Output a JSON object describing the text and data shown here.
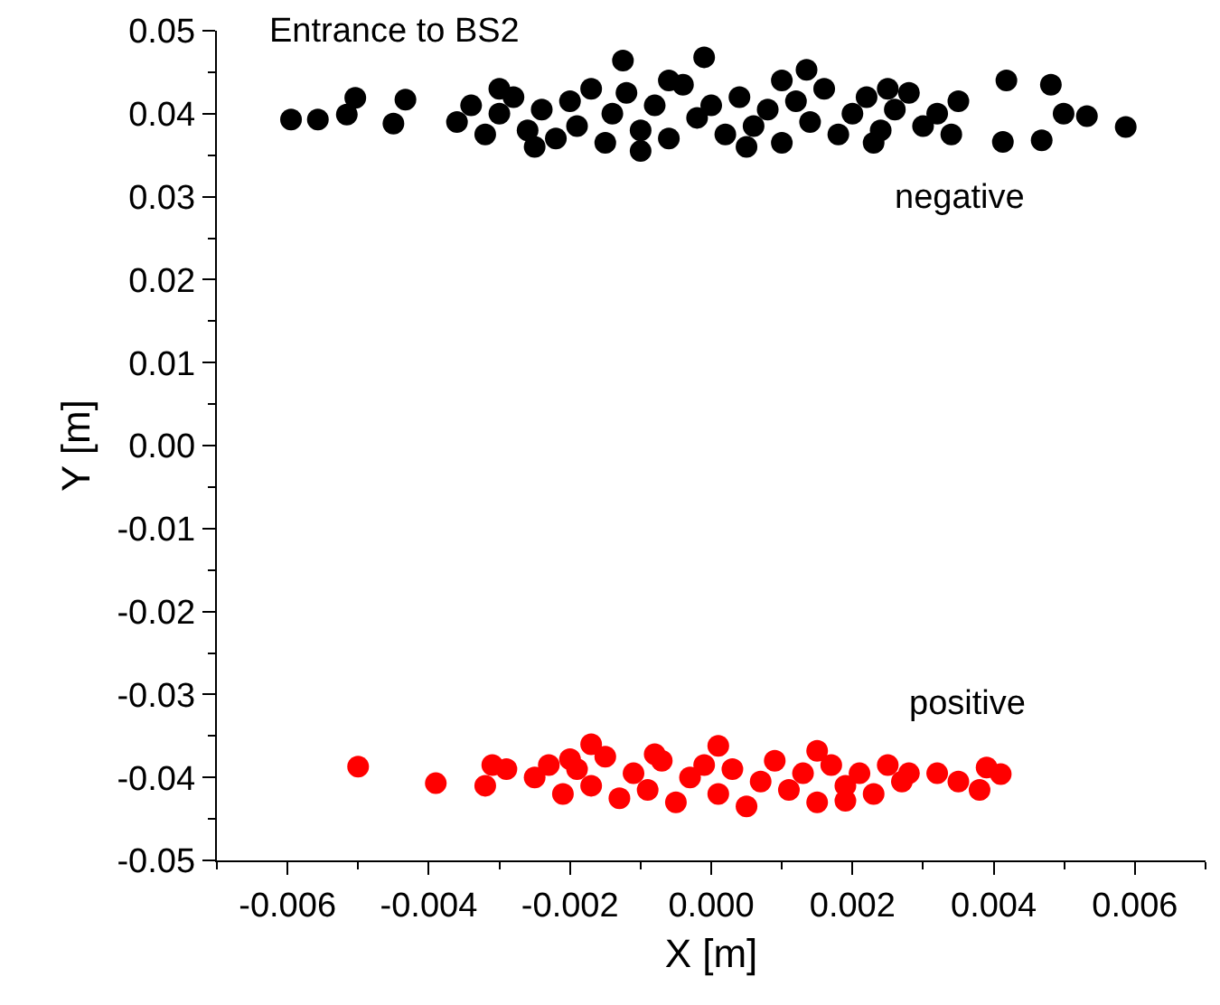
{
  "chart_data": {
    "type": "scatter",
    "annotations": [
      "Entrance to BS2"
    ],
    "xlabel": "X [m]",
    "ylabel": "Y [m]",
    "xlim": [
      -0.007,
      0.007
    ],
    "ylim": [
      -0.05,
      0.05
    ],
    "xticks": [
      {
        "value": -0.006,
        "label": "-0.006"
      },
      {
        "value": -0.004,
        "label": "-0.004"
      },
      {
        "value": -0.002,
        "label": "-0.002"
      },
      {
        "value": 0,
        "label": "0.000"
      },
      {
        "value": 0.002,
        "label": "0.002"
      },
      {
        "value": 0.004,
        "label": "0.004"
      },
      {
        "value": 0.006,
        "label": "0.006"
      }
    ],
    "yticks": [
      {
        "value": -0.05,
        "label": "-0.05"
      },
      {
        "value": -0.04,
        "label": "-0.04"
      },
      {
        "value": -0.03,
        "label": "-0.03"
      },
      {
        "value": -0.02,
        "label": "-0.02"
      },
      {
        "value": -0.01,
        "label": "-0.01"
      },
      {
        "value": 0,
        "label": "0.00"
      },
      {
        "value": 0.01,
        "label": "0.01"
      },
      {
        "value": 0.02,
        "label": "0.02"
      },
      {
        "value": 0.03,
        "label": "0.03"
      },
      {
        "value": 0.04,
        "label": "0.04"
      },
      {
        "value": 0.05,
        "label": "0.05"
      }
    ],
    "grid": false,
    "legend": false,
    "marker": "circle",
    "series": [
      {
        "name": "negative",
        "color": "#000000",
        "x": [
          -0.00595,
          -0.00557,
          -0.00516,
          -0.00504,
          -0.0045,
          -0.00433,
          -0.0036,
          -0.0034,
          -0.0032,
          -0.003,
          -0.0028,
          -0.0026,
          -0.0024,
          -0.0022,
          -0.002,
          -0.0019,
          -0.0017,
          -0.0015,
          -0.0014,
          -0.0012,
          -0.001,
          -0.0008,
          -0.0006,
          -0.0004,
          -0.0002,
          0,
          0.0002,
          0.0004,
          0.0006,
          0.0008,
          0.001,
          0.0012,
          0.0014,
          0.0016,
          0.0018,
          0.002,
          0.0022,
          0.0024,
          0.0026,
          0.0028,
          0.003,
          0.0032,
          0.0034,
          0.0035,
          -0.001,
          0.0005,
          0.0023,
          -0.0025,
          -0.003,
          0.001,
          0.0025,
          -0.0006,
          -0.00125,
          -0.0001,
          0.00135,
          0.00418,
          0.00481,
          0.00499,
          0.00532,
          0.00587,
          0.00468,
          0.00413
        ],
        "values": [
          0.0393,
          0.0393,
          0.0399,
          0.0419,
          0.0388,
          0.0417,
          0.039,
          0.041,
          0.0375,
          0.04,
          0.042,
          0.038,
          0.0405,
          0.037,
          0.0415,
          0.0385,
          0.043,
          0.0365,
          0.04,
          0.0425,
          0.038,
          0.041,
          0.037,
          0.0435,
          0.0395,
          0.041,
          0.0375,
          0.042,
          0.0385,
          0.0405,
          0.0365,
          0.0415,
          0.039,
          0.043,
          0.0375,
          0.04,
          0.042,
          0.038,
          0.0405,
          0.0425,
          0.0385,
          0.04,
          0.0375,
          0.0415,
          0.0355,
          0.036,
          0.0365,
          0.036,
          0.043,
          0.044,
          0.043,
          0.044,
          0.0464,
          0.0468,
          0.0453,
          0.044,
          0.0435,
          0.04,
          0.0397,
          0.0384,
          0.0368,
          0.0366
        ]
      },
      {
        "name": "positive",
        "color": "#ff0000",
        "x": [
          -0.005,
          -0.0039,
          -0.0032,
          -0.0031,
          -0.0029,
          0.0032,
          0.0035,
          0.0038,
          0.0039,
          0.0041,
          -0.0025,
          -0.0023,
          -0.0021,
          -0.0019,
          -0.0017,
          -0.0015,
          -0.0013,
          -0.0011,
          -0.0009,
          -0.0007,
          -0.0005,
          -0.0003,
          -0.0001,
          0.0001,
          0.0003,
          0.0005,
          0.0007,
          0.0009,
          0.0011,
          0.0013,
          0.0015,
          0.0017,
          0.0019,
          0.0021,
          0.0023,
          0.0025,
          0.0027,
          0.0028,
          -0.0017,
          -0.0008,
          0.0001,
          0.0015,
          0.0019,
          -0.002
        ],
        "values": [
          -0.0387,
          -0.0407,
          -0.041,
          -0.0385,
          -0.039,
          -0.0395,
          -0.0405,
          -0.0415,
          -0.0388,
          -0.0396,
          -0.04,
          -0.0385,
          -0.042,
          -0.039,
          -0.041,
          -0.0375,
          -0.0425,
          -0.0395,
          -0.0415,
          -0.038,
          -0.043,
          -0.04,
          -0.0385,
          -0.042,
          -0.039,
          -0.0435,
          -0.0405,
          -0.038,
          -0.0415,
          -0.0395,
          -0.043,
          -0.0385,
          -0.041,
          -0.0395,
          -0.042,
          -0.0385,
          -0.0405,
          -0.0395,
          -0.036,
          -0.0372,
          -0.0362,
          -0.0368,
          -0.0428,
          -0.0378
        ]
      }
    ]
  }
}
